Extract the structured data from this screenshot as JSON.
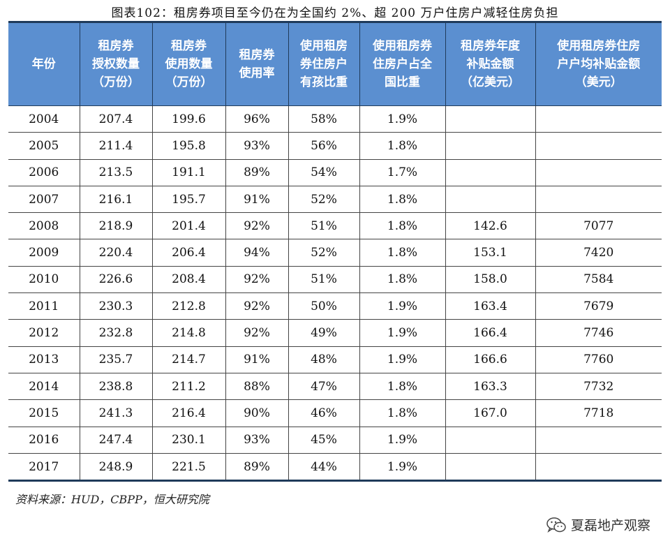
{
  "title": "图表102：租房券项目至今仍在为全国约 2%、超 200 万户住房户减轻住房负担",
  "columns": [
    "年份",
    "租房券\n授权数量\n（万份）",
    "租房券\n使用数量\n（万份）",
    "租房券\n使用率",
    "使用租房\n券住房户\n有孩比重",
    "使用租房券\n住房户占全\n国比重",
    "租房券年度\n补贴金额\n（亿美元）",
    "使用租房券住房\n户户均补贴金额\n（美元）"
  ],
  "rows": [
    [
      "2004",
      "207.4",
      "199.6",
      "96%",
      "58%",
      "1.9%",
      "",
      ""
    ],
    [
      "2005",
      "211.4",
      "195.8",
      "93%",
      "56%",
      "1.8%",
      "",
      ""
    ],
    [
      "2006",
      "213.5",
      "191.1",
      "89%",
      "54%",
      "1.7%",
      "",
      ""
    ],
    [
      "2007",
      "216.1",
      "195.7",
      "91%",
      "52%",
      "1.8%",
      "",
      ""
    ],
    [
      "2008",
      "218.9",
      "201.4",
      "92%",
      "51%",
      "1.8%",
      "142.6",
      "7077"
    ],
    [
      "2009",
      "220.4",
      "206.4",
      "94%",
      "52%",
      "1.8%",
      "153.1",
      "7420"
    ],
    [
      "2010",
      "226.6",
      "208.4",
      "92%",
      "51%",
      "1.8%",
      "158.0",
      "7584"
    ],
    [
      "2011",
      "230.3",
      "212.8",
      "92%",
      "50%",
      "1.9%",
      "163.4",
      "7679"
    ],
    [
      "2012",
      "232.8",
      "214.8",
      "92%",
      "49%",
      "1.9%",
      "166.4",
      "7746"
    ],
    [
      "2013",
      "235.7",
      "214.7",
      "91%",
      "48%",
      "1.9%",
      "166.6",
      "7760"
    ],
    [
      "2014",
      "238.8",
      "211.2",
      "88%",
      "47%",
      "1.8%",
      "163.3",
      "7732"
    ],
    [
      "2015",
      "241.3",
      "216.4",
      "90%",
      "46%",
      "1.8%",
      "167.0",
      "7718"
    ],
    [
      "2016",
      "247.4",
      "230.1",
      "93%",
      "45%",
      "1.9%",
      "",
      ""
    ],
    [
      "2017",
      "248.9",
      "221.5",
      "89%",
      "44%",
      "1.9%",
      "",
      ""
    ]
  ],
  "source": "资料来源：HUD，CBPP，恒大研究院",
  "watermark": {
    "text": "夏磊地产观察",
    "icon": "wechat-icon"
  },
  "colors": {
    "header_bg": "#5b8fd0",
    "header_text": "#ffffff",
    "rule": "#1f3a5a"
  }
}
